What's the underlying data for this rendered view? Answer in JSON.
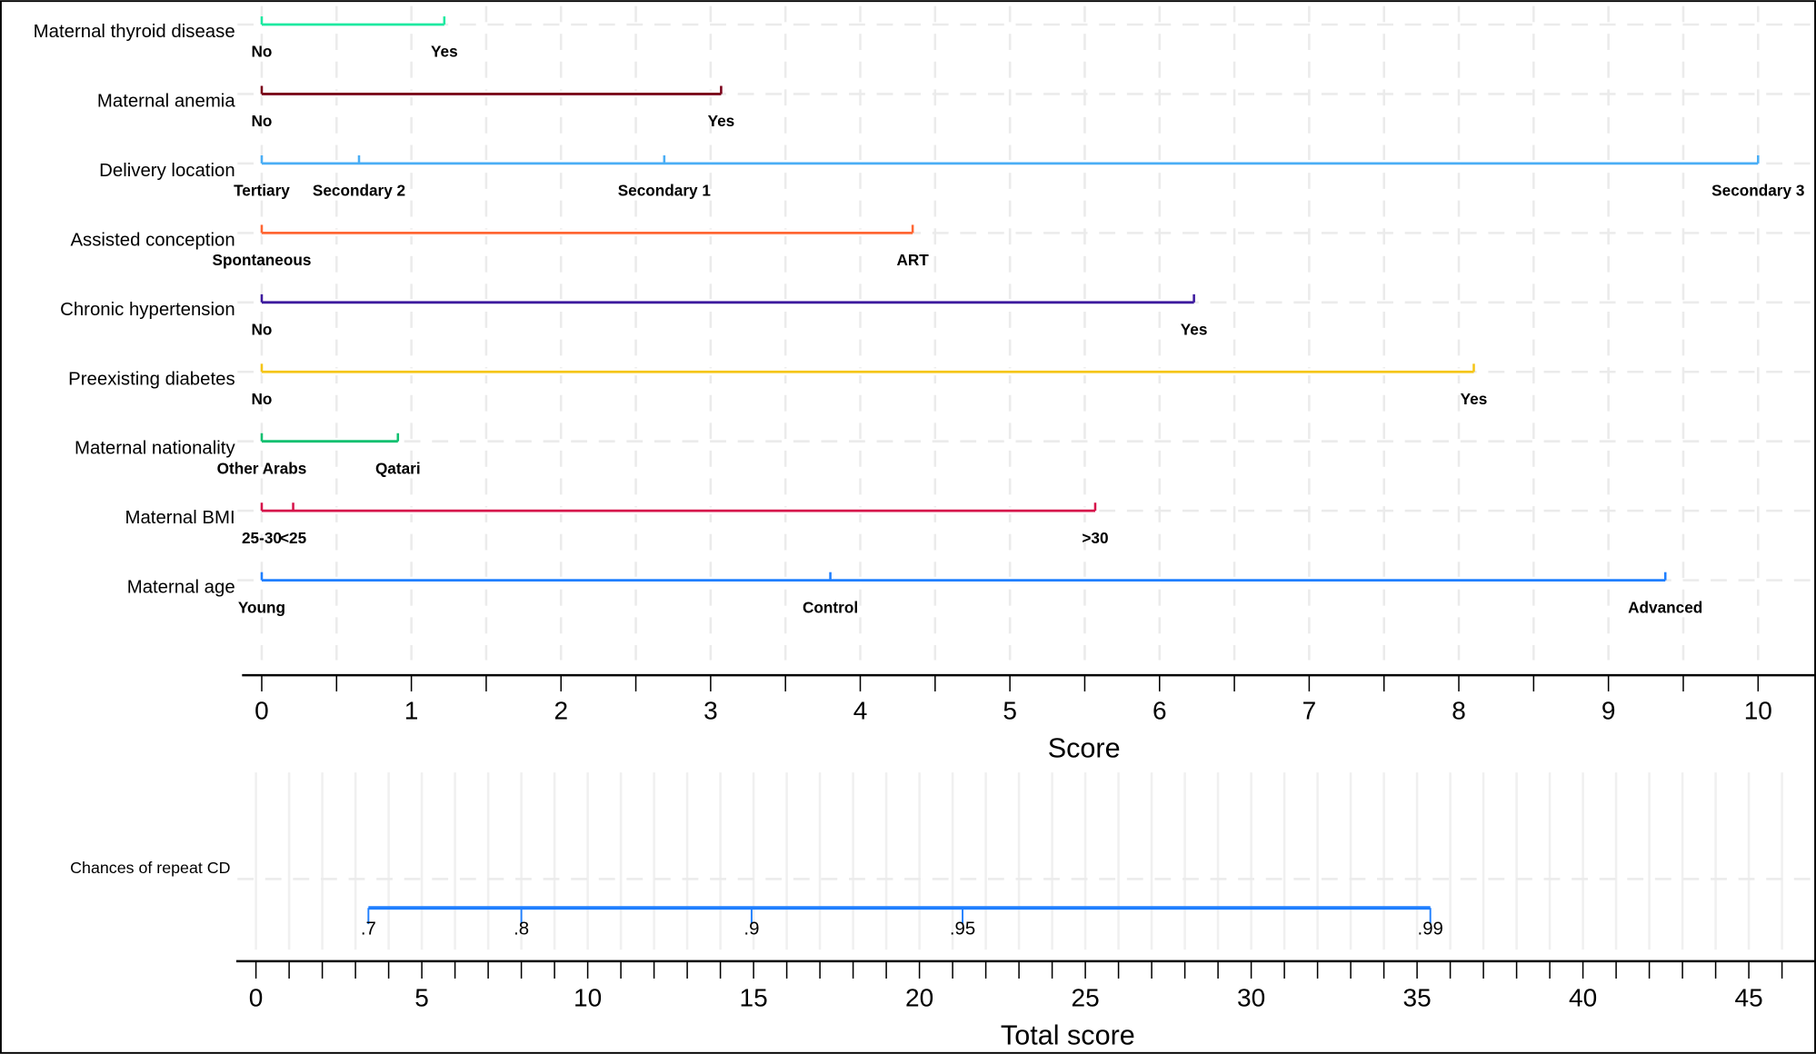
{
  "chart_data": {
    "type": "nomogram",
    "score_axis": {
      "label": "Score",
      "range": [
        0,
        10
      ],
      "ticks": [
        "0",
        "1",
        "2",
        "3",
        "4",
        "5",
        "6",
        "7",
        "8",
        "9",
        "10"
      ],
      "minor_step": 0.5
    },
    "variables": [
      {
        "name": "Maternal thyroid disease",
        "color": "#1de9a0",
        "levels": [
          {
            "label": "No",
            "score": 0
          },
          {
            "label": "Yes",
            "score": 1.22
          }
        ]
      },
      {
        "name": "Maternal anemia",
        "color": "#7a0019",
        "levels": [
          {
            "label": "No",
            "score": 0
          },
          {
            "label": "Yes",
            "score": 3.07
          }
        ]
      },
      {
        "name": "Delivery location",
        "color": "#4aaef5",
        "levels": [
          {
            "label": "Tertiary",
            "score": 0
          },
          {
            "label": "Secondary 2",
            "score": 0.65
          },
          {
            "label": "Secondary 1",
            "score": 2.69
          },
          {
            "label": "Secondary 3",
            "score": 10
          }
        ]
      },
      {
        "name": "Assisted conception",
        "color": "#ff6633",
        "levels": [
          {
            "label": "Spontaneous",
            "score": 0
          },
          {
            "label": "ART",
            "score": 4.35
          }
        ]
      },
      {
        "name": "Chronic hypertension",
        "color": "#3d1a9e",
        "levels": [
          {
            "label": "No",
            "score": 0
          },
          {
            "label": "Yes",
            "score": 6.23
          }
        ]
      },
      {
        "name": "Preexisting diabetes",
        "color": "#f5c518",
        "levels": [
          {
            "label": "No",
            "score": 0
          },
          {
            "label": "Yes",
            "score": 8.1
          }
        ]
      },
      {
        "name": "Maternal nationality",
        "color": "#10c070",
        "levels": [
          {
            "label": "Other Arabs",
            "score": 0
          },
          {
            "label": "Qatari",
            "score": 0.91
          }
        ]
      },
      {
        "name": "Maternal BMI",
        "color": "#d6134a",
        "levels": [
          {
            "label": "25-30",
            "score": 0
          },
          {
            "label": "<25",
            "score": 0.21
          },
          {
            "label": ">30",
            "score": 5.57
          }
        ]
      },
      {
        "name": "Maternal age",
        "color": "#1f7fff",
        "levels": [
          {
            "label": "Young",
            "score": 0
          },
          {
            "label": "Control",
            "score": 3.8
          },
          {
            "label": "Advanced",
            "score": 9.38
          }
        ]
      }
    ],
    "total_axis": {
      "label": "Total score",
      "range": [
        0,
        45
      ],
      "ticks": [
        "0",
        "5",
        "10",
        "15",
        "20",
        "25",
        "30",
        "35",
        "40",
        "45"
      ],
      "minor_step": 1
    },
    "probability": {
      "name": "Chances of repeat CD",
      "color": "#1f7fff",
      "points": [
        {
          "label": ".7",
          "total": 3.39
        },
        {
          "label": ".8",
          "total": 8.0
        },
        {
          "label": ".9",
          "total": 14.94
        },
        {
          "label": ".95",
          "total": 21.3
        },
        {
          "label": ".99",
          "total": 35.4
        }
      ]
    }
  }
}
